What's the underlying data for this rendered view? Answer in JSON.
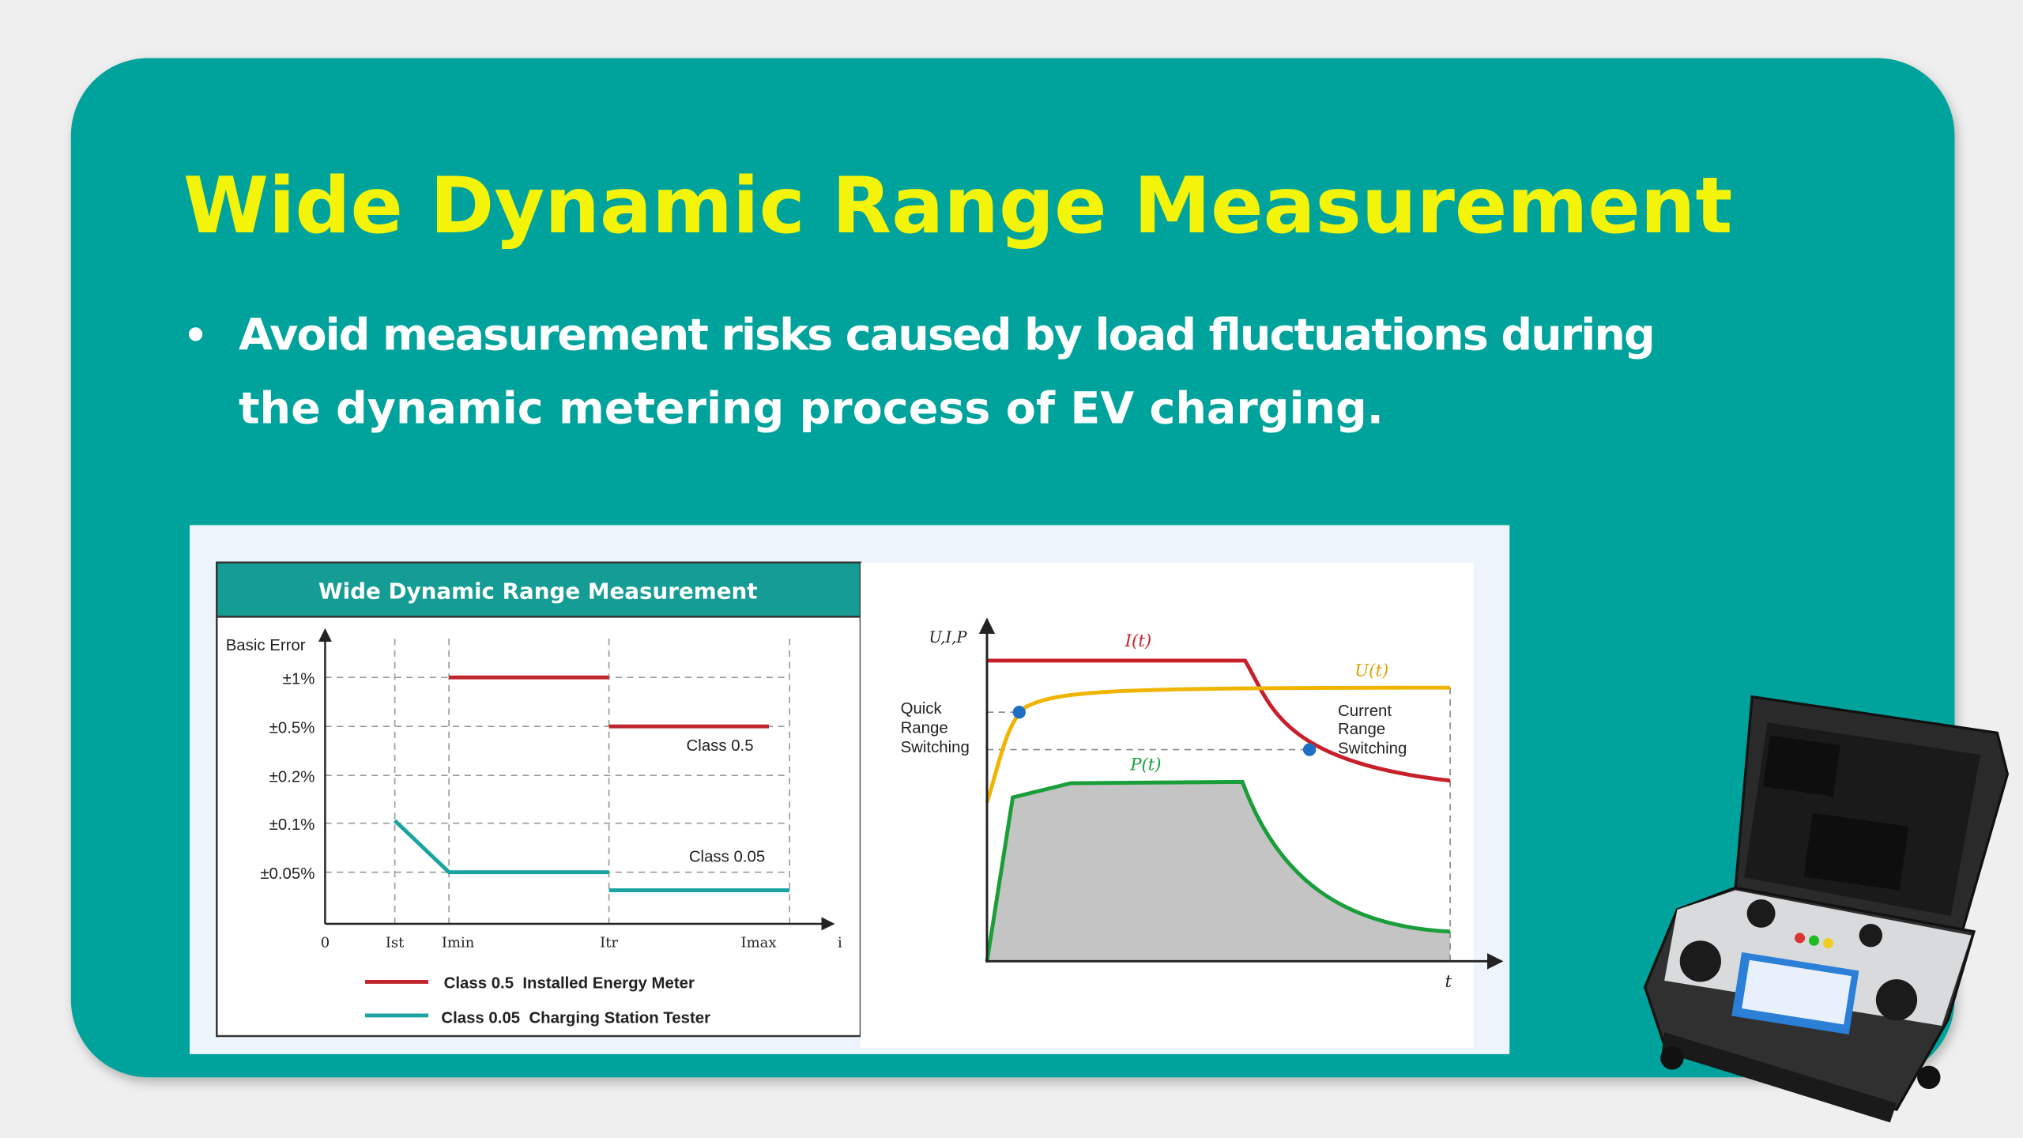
{
  "header": {
    "title": "Wide Dynamic Range Measurement"
  },
  "bullets": [
    {
      "lines": [
        "Avoid measurement risks caused by load fluctuations during",
        "the dynamic metering process of EV charging."
      ]
    }
  ],
  "figure_left": {
    "title": "Wide Dynamic Range Measurement",
    "y_axis_label": "Basic Error",
    "y_labels": [
      "±1%",
      "±0.5%",
      "±0.2%",
      "±0.1%",
      "±0.05%"
    ],
    "x_labels": [
      "0",
      "Ist",
      "Imin",
      "Itr",
      "Imax",
      "i"
    ],
    "annotations": [
      "Class 0.5",
      "Class 0.05"
    ],
    "legend": [
      {
        "label": "Class 0.5  Installed Energy Meter",
        "color": "#c0262e"
      },
      {
        "label": "Class 0.05  Charging Station Tester",
        "color": "#1aa3a0"
      }
    ]
  },
  "figure_right": {
    "y_axis_label": "U,I,P",
    "x_axis_label": "t",
    "curves": [
      {
        "label": "I(t)",
        "color": "#c8202a"
      },
      {
        "label": "U(t)",
        "color": "#f0b400"
      },
      {
        "label": "P(t)",
        "color": "#1a9e3a"
      }
    ],
    "notes": [
      {
        "lines": [
          "Quick",
          "Range",
          "Switching"
        ]
      },
      {
        "lines": [
          "Current",
          "Range",
          "Switching"
        ]
      }
    ]
  }
}
